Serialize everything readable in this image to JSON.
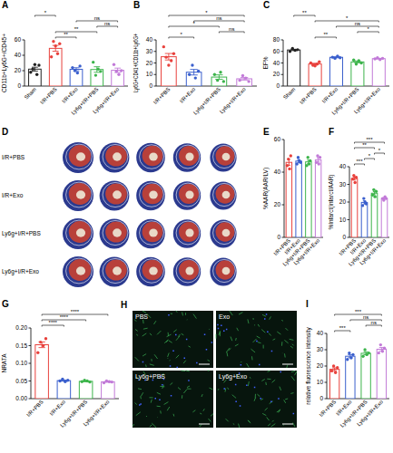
{
  "chart_data": [
    {
      "type": "bar",
      "annotations": [
        "A"
      ],
      "y_label": "CD11b+Ly6G+/CD45+",
      "categories": [
        "Sham",
        "I/R+PBS",
        "I/R+Exo",
        "Ly6g+I/R+PBS",
        "Ly6g+I/R+Exo"
      ],
      "colors": [
        "#222222",
        "#e8413c",
        "#3a5fcd",
        "#3cb44b",
        "#c27ad8"
      ],
      "values": [
        22,
        49,
        21.8,
        21.5,
        20.5
      ],
      "errors": [
        2.5,
        3.8,
        2,
        3.6,
        2.8
      ],
      "points": [
        [
          18,
          22,
          28,
          15,
          27
        ],
        [
          38,
          58,
          52,
          42,
          55
        ],
        [
          24,
          20,
          17,
          26
        ],
        [
          31,
          14,
          22,
          19
        ],
        [
          28,
          19,
          15,
          20
        ]
      ],
      "ylim": [
        0,
        60
      ],
      "yticks": [
        0,
        20,
        40,
        60
      ],
      "comparisons": [
        {
          "groups": [
            "I/R+PBS",
            "I/R+Exo"
          ],
          "label": "**"
        },
        {
          "groups": [
            "I/R+PBS",
            "Ly6g+I/R+PBS"
          ],
          "label": "**"
        },
        {
          "groups": [
            "Ly6g+I/R+PBS",
            "Ly6g+I/R+Exo"
          ],
          "label": "ns"
        },
        {
          "groups": [
            "I/R+Exo",
            "Ly6g+I/R+Exo"
          ],
          "label": "ns"
        },
        {
          "groups": [
            "Sham",
            "I/R+PBS"
          ],
          "label": "*"
        }
      ]
    },
    {
      "type": "bar",
      "annotations": [
        "B"
      ],
      "y_label": "Ly6G+CD41+/CD11b+Ly6G+",
      "categories": [
        "I/R+PBS",
        "I/R+Exo",
        "Ly6g+I/R+PBS",
        "Ly6g+I/R+Exo"
      ],
      "colors": [
        "#e8413c",
        "#3a5fcd",
        "#3cb44b",
        "#c27ad8"
      ],
      "values": [
        25.4,
        12,
        7.8,
        6.3
      ],
      "errors": [
        2.8,
        2.4,
        1.9,
        1.1
      ],
      "points": [
        [
          34,
          25,
          18,
          22,
          28
        ],
        [
          10,
          18,
          7,
          13
        ],
        [
          10,
          5,
          12,
          4
        ],
        [
          5,
          9,
          7,
          4
        ]
      ],
      "ylim": [
        0,
        40
      ],
      "yticks": [
        0,
        10,
        20,
        30,
        40
      ],
      "comparisons": [
        {
          "groups": [
            "I/R+PBS",
            "I/R+Exo"
          ],
          "label": "*"
        },
        {
          "groups": [
            "Ly6g+I/R+PBS",
            "Ly6g+I/R+Exo"
          ],
          "label": "ns"
        },
        {
          "groups": [
            "I/R+PBS",
            "Ly6g+I/R+PBS"
          ],
          "label": "*"
        },
        {
          "groups": [
            "I/R+Exo",
            "Ly6g+I/R+Exo"
          ],
          "label": "ns"
        },
        {
          "groups": [
            "I/R+PBS",
            "Ly6g+I/R+Exo"
          ],
          "label": "*"
        }
      ]
    },
    {
      "type": "bar",
      "annotations": [
        "C"
      ],
      "y_label": "EF%",
      "categories": [
        "Sham",
        "I/R+PBS",
        "I/R+Exo",
        "Ly6g+I/R+PBS",
        "Ly6g+I/R+Exo"
      ],
      "colors": [
        "#222222",
        "#e8413c",
        "#3a5fcd",
        "#3cb44b",
        "#c27ad8"
      ],
      "values": [
        62.5,
        38.2,
        49.8,
        41.8,
        47.5
      ],
      "errors": [
        1.1,
        1.3,
        0.9,
        1.6,
        0.6
      ],
      "points": [
        [
          60,
          65,
          62,
          63
        ],
        [
          40,
          36,
          35,
          38,
          42
        ],
        [
          50,
          48,
          52,
          49
        ],
        [
          45,
          38,
          44,
          40
        ],
        [
          47,
          49,
          46,
          48
        ]
      ],
      "ylim": [
        0,
        80
      ],
      "yticks": [
        0,
        20,
        40,
        60,
        80
      ],
      "comparisons": [
        {
          "groups": [
            "I/R+PBS",
            "I/R+Exo"
          ],
          "label": "**"
        },
        {
          "groups": [
            "Ly6g+I/R+PBS",
            "Ly6g+I/R+Exo"
          ],
          "label": "*"
        },
        {
          "groups": [
            "I/R+Exo",
            "Ly6g+I/R+Exo"
          ],
          "label": "ns"
        },
        {
          "groups": [
            "I/R+PBS",
            "Ly6g+I/R+Exo"
          ],
          "label": "*"
        },
        {
          "groups": [
            "Sham",
            "I/R+PBS"
          ],
          "label": "**"
        }
      ]
    },
    {
      "type": "bar",
      "annotations": [
        "E"
      ],
      "y_label": "%AAR(AAR/LV)",
      "categories": [
        "I/R+PBS",
        "I/R+Exo",
        "Ly6g+I/R+PBS",
        "Ly6g+I/R+Exo"
      ],
      "colors": [
        "#e8413c",
        "#3a5fcd",
        "#3cb44b",
        "#c27ad8"
      ],
      "values": [
        46,
        46.8,
        46.3,
        47.5
      ],
      "errors": [
        1.8,
        0.9,
        1.1,
        1.2
      ],
      "points": [
        [
          44,
          48,
          42,
          50
        ],
        [
          45,
          49,
          47,
          46
        ],
        [
          44,
          49,
          45,
          47
        ],
        [
          46,
          50,
          45,
          49
        ]
      ],
      "ylim": [
        0,
        60
      ],
      "yticks": [
        0,
        20,
        40,
        60
      ]
    },
    {
      "type": "bar",
      "annotations": [
        "F"
      ],
      "y_label": "%Infarct(infarct/AAR)",
      "categories": [
        "I/R+PBS",
        "I/R+Exo",
        "Ly6g+I/R+PBS",
        "Ly6g+I/R+Exo"
      ],
      "colors": [
        "#e8413c",
        "#3a5fcd",
        "#3cb44b",
        "#c27ad8"
      ],
      "values": [
        33.3,
        19.8,
        25,
        22
      ],
      "errors": [
        0.9,
        0.9,
        0.9,
        0.4
      ],
      "points": [
        [
          33,
          35,
          31,
          34
        ],
        [
          18,
          22,
          20,
          19
        ],
        [
          24,
          27,
          23,
          26
        ],
        [
          22,
          21,
          23,
          22
        ]
      ],
      "ylim": [
        0,
        40
      ],
      "yticks": [
        0,
        10,
        20,
        30,
        40
      ],
      "comparisons": [
        {
          "groups": [
            "I/R+PBS",
            "I/R+Exo"
          ],
          "label": "***"
        },
        {
          "groups": [
            "I/R+Exo",
            "Ly6g+I/R+PBS"
          ],
          "label": "*"
        },
        {
          "groups": [
            "Ly6g+I/R+PBS",
            "Ly6g+I/R+Exo"
          ],
          "label": "*"
        },
        {
          "groups": [
            "I/R+PBS",
            "Ly6g+I/R+PBS"
          ],
          "label": "**"
        },
        {
          "groups": [
            "I/R+PBS",
            "Ly6g+I/R+Exo"
          ],
          "label": "***"
        }
      ]
    },
    {
      "type": "bar",
      "annotations": [
        "G"
      ],
      "y_label": "NRATA",
      "categories": [
        "I/R+PBS",
        "I/R+Exo",
        "Ly6g+I/R+PBS",
        "Ly6g+I/R+Exo"
      ],
      "colors": [
        "#e8413c",
        "#3a5fcd",
        "#3cb44b",
        "#c27ad8"
      ],
      "values": [
        0.1525,
        0.051,
        0.049,
        0.0475
      ],
      "errors": [
        0.008,
        0.0015,
        0.0011,
        0.0011
      ],
      "points": [
        [
          0.13,
          0.16,
          0.15,
          0.17
        ],
        [
          0.05,
          0.055,
          0.048,
          0.052
        ],
        [
          0.048,
          0.052,
          0.05,
          0.047
        ],
        [
          0.045,
          0.05,
          0.048,
          0.047
        ]
      ],
      "ylim": [
        0,
        0.2
      ],
      "yticks": [
        {
          "value": 0,
          "label": "0.00"
        },
        {
          "value": 0.05,
          "label": "0.05"
        },
        {
          "value": 0.1,
          "label": "0.10"
        },
        {
          "value": 0.15,
          "label": "0.15"
        },
        {
          "value": 0.2,
          "label": "0.20"
        }
      ],
      "comparisons": [
        {
          "groups": [
            "I/R+PBS",
            "I/R+Exo"
          ],
          "label": "****"
        },
        {
          "groups": [
            "I/R+PBS",
            "Ly6g+I/R+PBS"
          ],
          "label": "****"
        },
        {
          "groups": [
            "I/R+PBS",
            "Ly6g+I/R+Exo"
          ],
          "label": "****"
        }
      ]
    },
    {
      "type": "bar",
      "annotations": [
        "I"
      ],
      "y_label": "relative fluorescence intensity",
      "categories": [
        "I/R+PBS",
        "I/R+Exo",
        "Ly6g+I/R+PBS",
        "Ly6g+I/R+Exo"
      ],
      "colors": [
        "#e8413c",
        "#3a5fcd",
        "#3cb44b",
        "#c27ad8"
      ],
      "values": [
        18,
        26,
        27.8,
        30.3
      ],
      "errors": [
        0.9,
        0.9,
        0.9,
        1.1
      ],
      "points": [
        [
          17,
          20,
          16,
          19
        ],
        [
          24,
          28,
          25,
          27
        ],
        [
          26,
          30,
          27,
          28
        ],
        [
          28,
          33,
          29,
          31
        ]
      ],
      "ylim": [
        0,
        40
      ],
      "yticks": [
        0,
        10,
        20,
        30,
        40
      ],
      "comparisons": [
        {
          "groups": [
            "I/R+PBS",
            "I/R+Exo"
          ],
          "label": "***"
        },
        {
          "groups": [
            "Ly6g+I/R+PBS",
            "Ly6g+I/R+Exo"
          ],
          "label": "ns"
        },
        {
          "groups": [
            "I/R+Exo",
            "Ly6g+I/R+Exo"
          ],
          "label": "ns"
        },
        {
          "groups": [
            "I/R+PBS",
            "Ly6g+I/R+Exo"
          ],
          "label": "***"
        }
      ]
    }
  ],
  "images": [
    {
      "annotations": [
        "D"
      ],
      "labels": [
        "I/R+PBS",
        "I/R+Exo",
        "Ly6g+I/R+PBS",
        "Ly6g+I/R+Exo"
      ]
    },
    {
      "annotations": [
        "H"
      ],
      "labels": [
        "PBS",
        "Exo",
        "Ly6g+PBS",
        "Ly6g+Exo"
      ]
    }
  ]
}
